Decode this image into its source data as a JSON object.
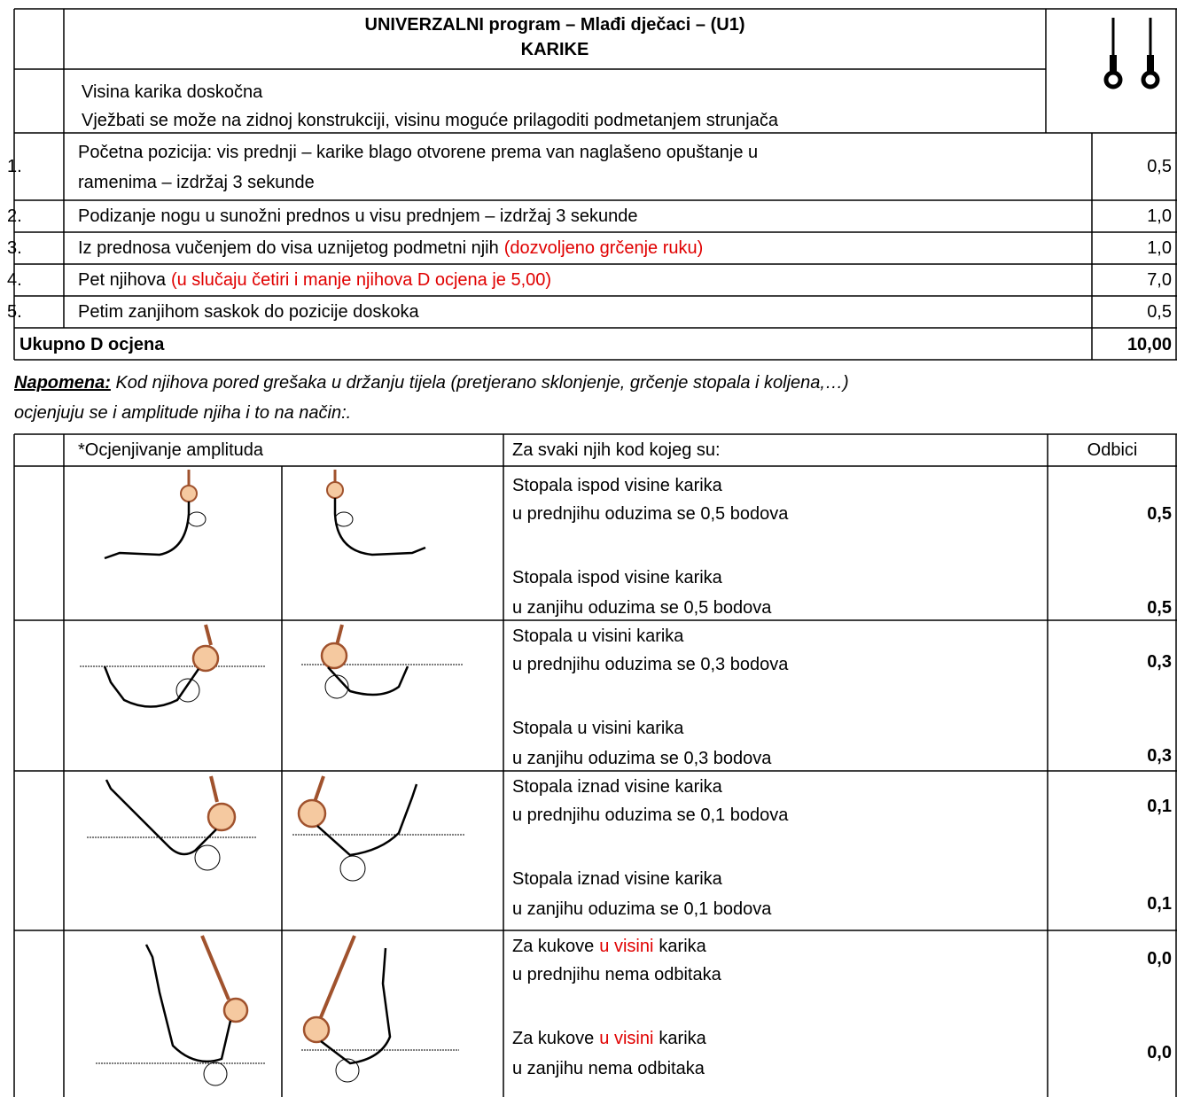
{
  "header": {
    "title": "UNIVERZALNI program – Mlađi dječaci – (U1)",
    "subtitle": "KARIKE"
  },
  "intro": [
    "Visina karika doskočna",
    "Vježbati se može na zidnoj konstrukciji, visinu moguće prilagoditi podmetanjem strunjača"
  ],
  "items": [
    {
      "number": "1.",
      "text": [
        "Početna pozicija: vis prednji – karike blago otvorene prema van naglašeno opuštanje u",
        "ramenima – izdržaj 3 sekunde"
      ],
      "points": "0,5"
    },
    {
      "number": "2.",
      "text": [
        "Podizanje nogu u sunožni prednos u visu prednjem – izdržaj 3 sekunde"
      ],
      "points": "1,0"
    },
    {
      "number": "3.",
      "text": [
        "Iz prednosa vučenjem do visa uznijetog podmetni njih"
      ],
      "note": "(dozvoljeno grčenje ruku)",
      "points": "1,0"
    },
    {
      "number": "4.",
      "text": [
        "Pet njihova"
      ],
      "note": "(u slučaju četiri i manje njihova D ocjena je 5,00)",
      "points": "7,0"
    },
    {
      "number": "5.",
      "text": [
        "Petim zanjihom saskok do pozicije doskoka"
      ],
      "points": "0,5"
    }
  ],
  "total": {
    "label": "Ukupno D ocjena",
    "value": "10,00"
  },
  "note": {
    "label": "Napomena:",
    "lines": [
      " Kod njihova pored grešaka u držanju  tijela (pretjerano sklonjenje, grčenje stopala i koljena,…)",
      "ocjenjuju se i amplitude njiha i to na način:."
    ]
  },
  "table2": {
    "headers": [
      "*Ocjenjivanje amplituda",
      "Za svaki njih kod kojeg su:",
      "Odbici"
    ],
    "rows": [
      {
        "entries": [
          {
            "line1": "Stopala ispod visine karika",
            "line2": "u prednjihu oduzima se 0,5 bodova",
            "deduction": "0,5"
          },
          {
            "line1": "Stopala ispod visine karika",
            "line2": "u zanjihu oduzima se 0,5 bodova",
            "deduction": "0,5"
          }
        ]
      },
      {
        "entries": [
          {
            "line1": "Stopala u visini karika",
            "line2": "u prednjihu oduzima se 0,3 bodova",
            "deduction": "0,3"
          },
          {
            "line1": "Stopala u visini karika",
            "line2": "u zanjihu oduzima se 0,3 bodova",
            "deduction": "0,3"
          }
        ]
      },
      {
        "entries": [
          {
            "line1": "Stopala iznad visine karika",
            "line2": "u prednjihu oduzima se 0,1 bodova",
            "deduction": "0,1"
          },
          {
            "line1": "Stopala iznad visine karika",
            "line2": "u zanjihu oduzima se 0,1 bodova",
            "deduction": "0,1"
          }
        ]
      },
      {
        "entries": [
          {
            "line1": {
              "before": "Za kukove",
              "highlight": "u visini",
              "after": "karika"
            },
            "line2": "u prednjihu nema odbitaka",
            "deduction": "0,0"
          },
          {
            "line1": {
              "before": "Za kukove",
              "highlight": "u visini",
              "after": "karika"
            },
            "line2": "u zanjihu nema odbitaka",
            "deduction": "0,0"
          }
        ]
      }
    ]
  }
}
